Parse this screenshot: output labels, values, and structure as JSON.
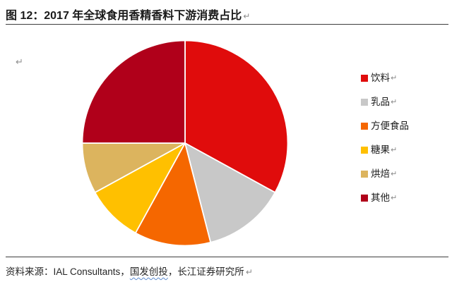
{
  "title": {
    "text": "图 12：2017 年全球食用香精香料下游消费占比",
    "return_mark": "↵"
  },
  "stray_return_mark": "↵",
  "chart_data": {
    "type": "pie",
    "title": "2017 年全球食用香精香料下游消费占比",
    "categories": [
      "饮料",
      "乳品",
      "方便食品",
      "糖果",
      "烘焙",
      "其他"
    ],
    "values": [
      33,
      13,
      12,
      9,
      8,
      25
    ],
    "unit": "percent",
    "colors": [
      "#E00C0C",
      "#C8C8C8",
      "#F56700",
      "#FFC000",
      "#DCB45E",
      "#B0001A"
    ],
    "start_angle_deg_from_top": 0,
    "direction": "clockwise",
    "slice_separator_color": "#ffffff",
    "legend_position": "right",
    "data_labels": false
  },
  "legend": {
    "items": [
      {
        "label": "饮料",
        "color": "#E00C0C",
        "return_mark": "↵"
      },
      {
        "label": "乳品",
        "color": "#C8C8C8",
        "return_mark": "↵"
      },
      {
        "label": "方便食品",
        "color": "#F56700",
        "return_mark": ""
      },
      {
        "label": "糖果",
        "color": "#FFC000",
        "return_mark": "↵"
      },
      {
        "label": "烘焙",
        "color": "#DCB45E",
        "return_mark": "↵"
      },
      {
        "label": "其他",
        "color": "#B0001A",
        "return_mark": "↵"
      }
    ]
  },
  "source": {
    "prefix": "资料来源：",
    "part1": "IAL Consultants，",
    "highlighted": "国发创投",
    "part2": "，长江证券研究所",
    "return_mark": "↵"
  }
}
